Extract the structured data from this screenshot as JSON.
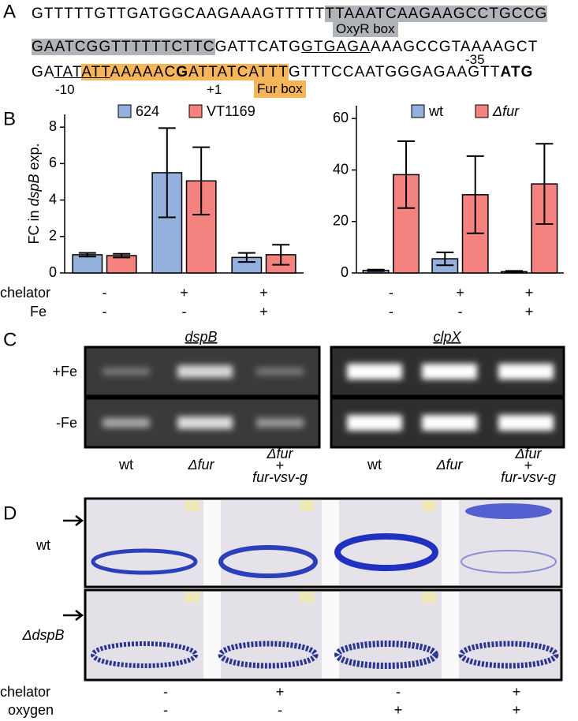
{
  "panel_labels": [
    "A",
    "B",
    "C",
    "D"
  ],
  "sequence": {
    "lines": [
      [
        {
          "text": "GTTTTTGTTGATGGCAAGAAAGTTTTT",
          "style": "plain"
        },
        {
          "text": "TTAAATCAAGAAGCCTGCCG",
          "style": "gray"
        }
      ],
      [
        {
          "text": "GAATCGGTTTTTTCTTC",
          "style": "gray"
        },
        {
          "text": "GATTCATG",
          "style": "plain"
        },
        {
          "text": "GTGAGA",
          "style": "underline"
        },
        {
          "text": "AAAGCCGTAAAAGCT",
          "style": "plain"
        }
      ],
      [
        {
          "text": "GA",
          "style": "plain"
        },
        {
          "text": "TAT",
          "style": "underline"
        },
        {
          "text": "ATT",
          "style": "orange-underline"
        },
        {
          "text": "AAAAAC",
          "style": "orange"
        },
        {
          "text": "G",
          "style": "orange-bold"
        },
        {
          "text": "ATTATCATTT",
          "style": "orange"
        },
        {
          "text": "GTTTCCAATGGGAGAAGTT",
          "style": "plain"
        },
        {
          "text": "ATG",
          "style": "bold"
        }
      ]
    ],
    "annotations": [
      "OxyR box",
      "-35",
      "-10",
      "+1",
      "Fur box"
    ]
  },
  "condition_labels": [
    "chelator",
    "Fe"
  ],
  "chart_data": [
    {
      "type": "bar",
      "ylabel_parts": [
        "FC in ",
        "dspB",
        " exp."
      ],
      "condition_signs": [
        [
          "-",
          "+",
          "+"
        ],
        [
          "-",
          "-",
          "+"
        ]
      ],
      "ylim": [
        0,
        8.7
      ],
      "yticks": [
        0,
        2,
        4,
        6,
        8
      ],
      "series": [
        {
          "name": "624",
          "color": "#94b0dd",
          "values": [
            1.0,
            5.5,
            0.85
          ],
          "errors": [
            0.1,
            2.45,
            0.25
          ]
        },
        {
          "name": "VT1169",
          "color": "#f4827e",
          "values": [
            0.95,
            5.05,
            1.0
          ],
          "errors": [
            0.1,
            1.85,
            0.55
          ]
        }
      ]
    },
    {
      "type": "bar",
      "condition_signs": [
        [
          "-",
          "+",
          "+"
        ],
        [
          "-",
          "-",
          "+"
        ]
      ],
      "ylim": [
        0,
        65
      ],
      "yticks": [
        0,
        20,
        40,
        60
      ],
      "series": [
        {
          "name": "wt",
          "color": "#94b0dd",
          "values": [
            1.0,
            5.5,
            0.5
          ],
          "errors": [
            0.3,
            2.5,
            0.3
          ]
        },
        {
          "name": "Δfur",
          "color": "#f4827e",
          "values": [
            38.2,
            30.4,
            34.6
          ],
          "errors": [
            13.0,
            15.0,
            15.6
          ]
        }
      ]
    }
  ],
  "gel": {
    "genes": [
      "dspB",
      "clpX"
    ],
    "conditions": [
      "+Fe",
      "-Fe"
    ],
    "lanes": [
      [
        "wt"
      ],
      [
        "Δfur"
      ],
      [
        "Δfur",
        "+",
        "fur-vsv-g"
      ]
    ]
  },
  "biofilm": {
    "strains": [
      "wt",
      "ΔdspB"
    ],
    "condition_labels": [
      "chelator",
      "oxygen"
    ],
    "signs": [
      [
        "-",
        "+",
        "-",
        "+"
      ],
      [
        "-",
        "-",
        "+",
        "+"
      ]
    ]
  }
}
